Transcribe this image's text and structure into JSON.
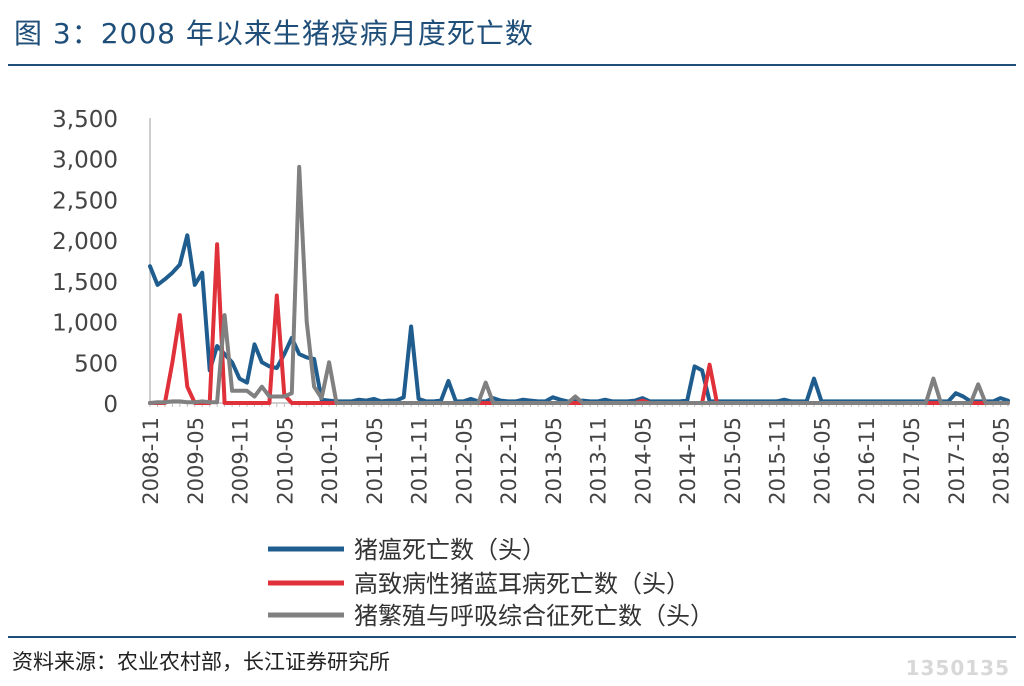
{
  "figure": {
    "title": "图 3：2008 年以来生猪疫病月度死亡数",
    "source": "资料来源：农业农村部，长江证券研究所",
    "watermark": "1350135"
  },
  "colors": {
    "title": "#1f4e79",
    "series": [
      "#1f5d8f",
      "#e0303a",
      "#808080"
    ]
  },
  "chart_data": {
    "type": "line",
    "title": "",
    "xlabel": "",
    "ylabel": "",
    "ylim": [
      0,
      3500
    ],
    "yticks": [
      0,
      500,
      1000,
      1500,
      2000,
      2500,
      3000,
      3500
    ],
    "ytick_labels": [
      "0",
      "500",
      "1,000",
      "1,500",
      "2,000",
      "2,500",
      "3,000",
      "3,500"
    ],
    "grid": false,
    "legend": "bottom",
    "x": [
      "2008-11",
      "2008-12",
      "2009-01",
      "2009-02",
      "2009-03",
      "2009-04",
      "2009-05",
      "2009-06",
      "2009-07",
      "2009-08",
      "2009-09",
      "2009-10",
      "2009-11",
      "2009-12",
      "2010-01",
      "2010-02",
      "2010-03",
      "2010-04",
      "2010-05",
      "2010-06",
      "2010-07",
      "2010-08",
      "2010-09",
      "2010-10",
      "2010-11",
      "2010-12",
      "2011-01",
      "2011-02",
      "2011-03",
      "2011-04",
      "2011-05",
      "2011-06",
      "2011-07",
      "2011-08",
      "2011-09",
      "2011-10",
      "2011-11",
      "2011-12",
      "2012-01",
      "2012-02",
      "2012-03",
      "2012-04",
      "2012-05",
      "2012-06",
      "2012-07",
      "2012-08",
      "2012-09",
      "2012-10",
      "2012-11",
      "2012-12",
      "2013-01",
      "2013-02",
      "2013-03",
      "2013-04",
      "2013-05",
      "2013-06",
      "2013-07",
      "2013-08",
      "2013-09",
      "2013-10",
      "2013-11",
      "2013-12",
      "2014-01",
      "2014-02",
      "2014-03",
      "2014-04",
      "2014-05",
      "2014-06",
      "2014-07",
      "2014-08",
      "2014-09",
      "2014-10",
      "2014-11",
      "2014-12",
      "2015-01",
      "2015-02",
      "2015-03",
      "2015-04",
      "2015-05",
      "2015-06",
      "2015-07",
      "2015-08",
      "2015-09",
      "2015-10",
      "2015-11",
      "2015-12",
      "2016-01",
      "2016-02",
      "2016-03",
      "2016-04",
      "2016-05",
      "2016-06",
      "2016-07",
      "2016-08",
      "2016-09",
      "2016-10",
      "2016-11",
      "2016-12",
      "2017-01",
      "2017-02",
      "2017-03",
      "2017-04",
      "2017-05",
      "2017-06",
      "2017-07",
      "2017-08",
      "2017-09",
      "2017-10",
      "2017-11",
      "2017-12",
      "2018-01",
      "2018-02",
      "2018-03",
      "2018-04",
      "2018-05",
      "2018-06"
    ],
    "xtick_labels": [
      "2008-11",
      "2009-05",
      "2009-11",
      "2010-05",
      "2010-11",
      "2011-05",
      "2011-11",
      "2012-05",
      "2012-11",
      "2013-05",
      "2013-11",
      "2014-05",
      "2014-11",
      "2015-05",
      "2015-11",
      "2016-05",
      "2016-11",
      "2017-05",
      "2017-11",
      "2018-05"
    ],
    "series": [
      {
        "name": "猪瘟死亡数（头）",
        "values": [
          1680,
          1450,
          1520,
          1600,
          1700,
          2060,
          1450,
          1600,
          400,
          700,
          600,
          500,
          300,
          250,
          720,
          500,
          450,
          430,
          600,
          800,
          600,
          560,
          540,
          40,
          30,
          20,
          20,
          20,
          40,
          30,
          50,
          20,
          30,
          30,
          70,
          940,
          50,
          20,
          20,
          30,
          270,
          20,
          20,
          50,
          20,
          20,
          60,
          30,
          20,
          20,
          40,
          30,
          20,
          20,
          70,
          40,
          20,
          20,
          30,
          20,
          20,
          40,
          20,
          20,
          20,
          30,
          60,
          20,
          20,
          20,
          20,
          20,
          30,
          450,
          400,
          20,
          20,
          20,
          20,
          20,
          20,
          20,
          20,
          20,
          20,
          40,
          20,
          20,
          20,
          300,
          20,
          20,
          20,
          20,
          20,
          20,
          20,
          20,
          20,
          20,
          20,
          20,
          20,
          20,
          20,
          20,
          20,
          20,
          120,
          80,
          20,
          20,
          20,
          20,
          60,
          30
        ]
      },
      {
        "name": "高致病性猪蓝耳病死亡数（头）",
        "values": [
          0,
          0,
          0,
          500,
          1080,
          200,
          0,
          0,
          0,
          1950,
          0,
          0,
          0,
          0,
          0,
          0,
          0,
          1320,
          100,
          0,
          0,
          0,
          0,
          0,
          0,
          0,
          0,
          0,
          0,
          0,
          0,
          0,
          0,
          0,
          0,
          0,
          0,
          0,
          0,
          0,
          0,
          0,
          0,
          0,
          0,
          0,
          0,
          0,
          0,
          0,
          0,
          0,
          0,
          0,
          0,
          0,
          0,
          0,
          0,
          0,
          0,
          0,
          0,
          0,
          0,
          0,
          30,
          0,
          0,
          0,
          0,
          0,
          0,
          0,
          0,
          470,
          0,
          0,
          0,
          0,
          0,
          0,
          0,
          0,
          0,
          0,
          0,
          0,
          0,
          0,
          0,
          0,
          0,
          0,
          0,
          0,
          0,
          0,
          0,
          0,
          0,
          0,
          0,
          0,
          0,
          0,
          0,
          0,
          0,
          0,
          0,
          0,
          0,
          0,
          0,
          0
        ]
      },
      {
        "name": "猪繁殖与呼吸综合征死亡数（头）",
        "values": [
          0,
          10,
          10,
          20,
          20,
          10,
          10,
          20,
          10,
          10,
          1080,
          150,
          150,
          150,
          80,
          200,
          80,
          80,
          80,
          120,
          2900,
          1000,
          200,
          60,
          500,
          0,
          0,
          0,
          0,
          0,
          0,
          0,
          0,
          0,
          0,
          0,
          0,
          0,
          0,
          0,
          0,
          0,
          0,
          0,
          0,
          250,
          0,
          0,
          0,
          0,
          0,
          0,
          0,
          0,
          0,
          0,
          0,
          80,
          0,
          0,
          0,
          0,
          0,
          0,
          0,
          0,
          0,
          0,
          0,
          0,
          0,
          0,
          0,
          0,
          0,
          0,
          0,
          0,
          0,
          0,
          0,
          0,
          0,
          0,
          0,
          0,
          0,
          0,
          0,
          0,
          0,
          0,
          0,
          0,
          0,
          0,
          0,
          0,
          0,
          0,
          0,
          0,
          0,
          0,
          0,
          300,
          0,
          0,
          0,
          0,
          0,
          230,
          0,
          0,
          0,
          0
        ]
      }
    ]
  }
}
